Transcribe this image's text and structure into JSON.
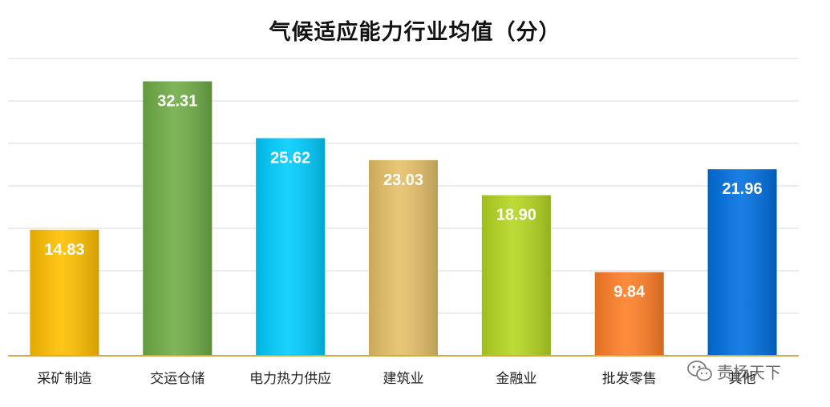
{
  "chart_data": {
    "type": "bar",
    "title": "气候适应能力行业均值（分）",
    "categories": [
      "采矿制造",
      "交运仓储",
      "电力热力供应",
      "建筑业",
      "金融业",
      "批发零售",
      "其他"
    ],
    "values": [
      14.83,
      32.31,
      25.62,
      23.03,
      18.9,
      9.84,
      21.96
    ],
    "value_labels": [
      "14.83",
      "32.31",
      "25.62",
      "23.03",
      "18.90",
      "9.84",
      "21.96"
    ],
    "colors": [
      "#FFC000",
      "#70AD47",
      "#00CCFF",
      "#E6C068",
      "#B4D721",
      "#FF7F27",
      "#0070E0"
    ],
    "ylim": [
      0,
      35
    ],
    "grid": true,
    "xlabel": "",
    "ylabel": ""
  },
  "watermark": {
    "text": "责杨天下",
    "icon": "wechat-icon"
  }
}
